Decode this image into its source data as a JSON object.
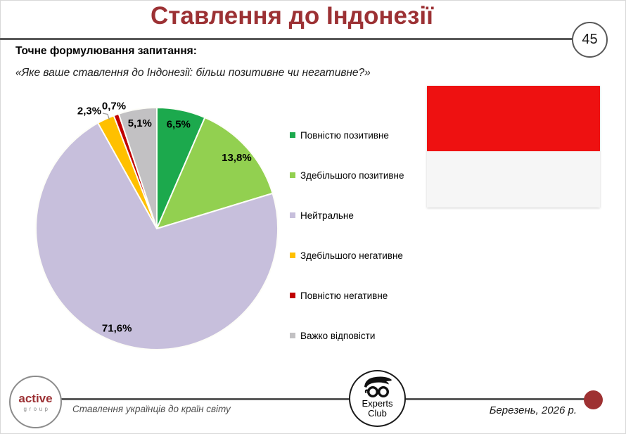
{
  "header": {
    "title": "Ставлення до Індонезії",
    "page_number": "45"
  },
  "question": {
    "label": "Точне формулювання запитання:",
    "text": "«Яке ваше ставлення до Індонезії: більш позитивне чи негативне?»"
  },
  "chart_data": {
    "type": "pie",
    "title": "Ставлення до Індонезії",
    "legend_position": "right",
    "start_angle_deg": 0,
    "direction": "clockwise",
    "series": [
      {
        "name": "Повністю позитивне",
        "value": 6.5,
        "label": "6,5%",
        "color": "#1ca94d"
      },
      {
        "name": "Здебільшого позитивне",
        "value": 13.8,
        "label": "13,8%",
        "color": "#92d050"
      },
      {
        "name": "Нейтральне",
        "value": 71.6,
        "label": "71,6%",
        "color": "#c7bfdc"
      },
      {
        "name": "Здебільшого негативне",
        "value": 2.3,
        "label": "2,3%",
        "color": "#ffc000"
      },
      {
        "name": "Повністю негативне",
        "value": 0.7,
        "label": "0,7%",
        "color": "#c00000"
      },
      {
        "name": "Важко відповісти",
        "value": 5.1,
        "label": "5,1%",
        "color": "#c2c1c3"
      }
    ]
  },
  "flag": {
    "country": "Indonesia",
    "colors": {
      "top": "#ee1111",
      "bottom": "#f6f6f6"
    }
  },
  "footer": {
    "active_group": {
      "line1": "active",
      "line2": "group"
    },
    "report_title": "Ставлення українців до країн світу",
    "experts_club": {
      "line1": "Experts",
      "line2": "Club"
    },
    "date": "Березень, 2026 р."
  },
  "colors": {
    "brand_red": "#9c3134",
    "divider_gray": "#595959",
    "footer_dot_red": "#9e3132"
  },
  "icons": {
    "experts_club_logo": "face-with-glasses-icon"
  }
}
